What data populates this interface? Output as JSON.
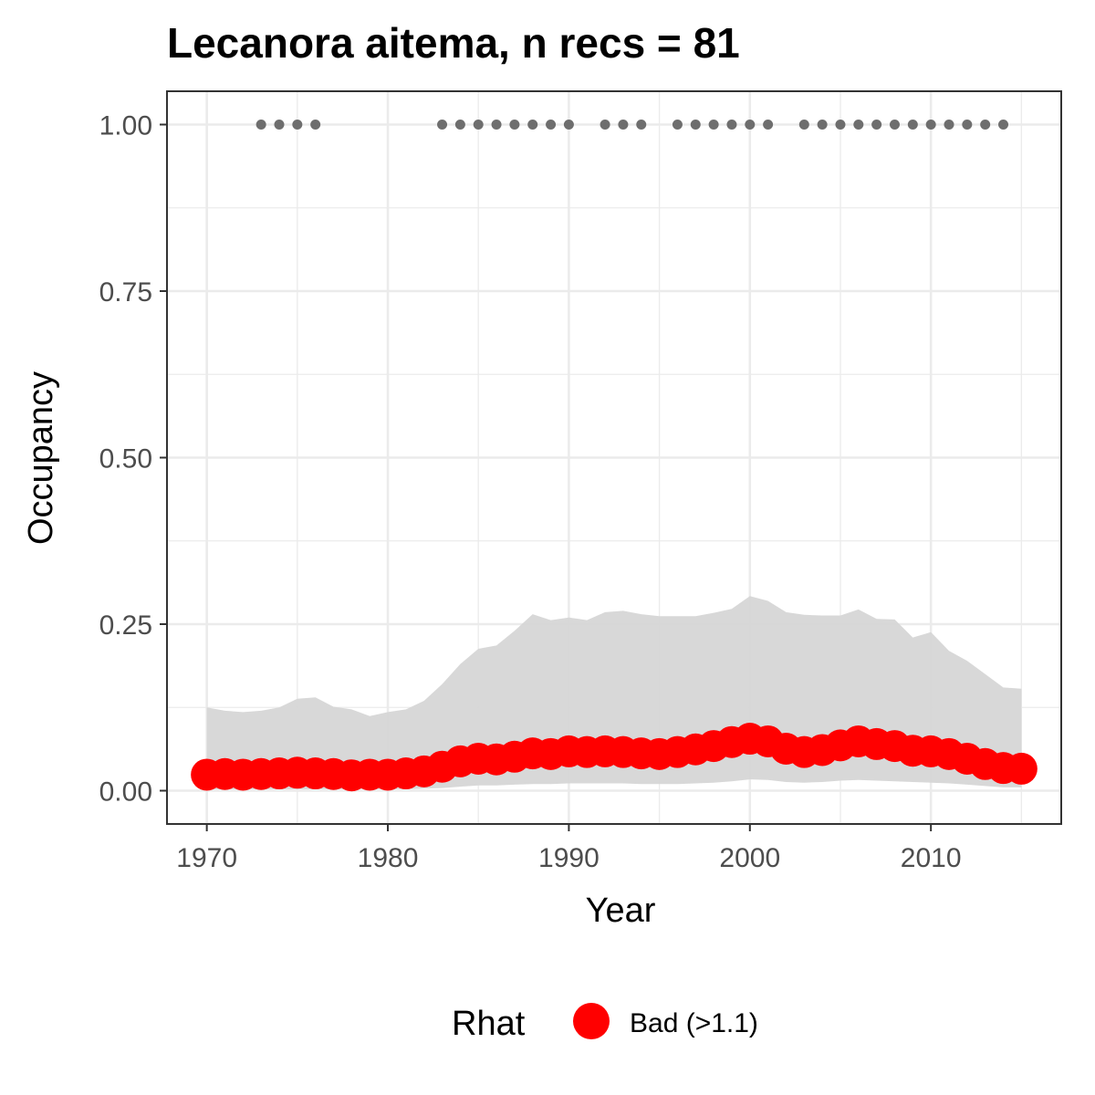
{
  "chart_data": {
    "type": "line",
    "title": "Lecanora aitema, n recs = 81",
    "xlabel": "Year",
    "ylabel": "Occupancy",
    "xlim": [
      1967.8,
      2017.2
    ],
    "ylim": [
      -0.05,
      1.05
    ],
    "x_ticks": [
      1970,
      1980,
      1990,
      2000,
      2010
    ],
    "x_tick_labels": [
      "1970",
      "1980",
      "1990",
      "2000",
      "2010"
    ],
    "y_ticks": [
      0,
      0.25,
      0.5,
      0.75,
      1.0
    ],
    "y_tick_labels": [
      "0.00",
      "0.25",
      "0.50",
      "0.75",
      "1.00"
    ],
    "grid": true,
    "legend_position": "bottom",
    "x": [
      1970,
      1971,
      1972,
      1973,
      1974,
      1975,
      1976,
      1977,
      1978,
      1979,
      1980,
      1981,
      1982,
      1983,
      1984,
      1985,
      1986,
      1987,
      1988,
      1989,
      1990,
      1991,
      1992,
      1993,
      1994,
      1995,
      1996,
      1997,
      1998,
      1999,
      2000,
      2001,
      2002,
      2003,
      2004,
      2005,
      2006,
      2007,
      2008,
      2009,
      2010,
      2011,
      2012,
      2013,
      2014,
      2015
    ],
    "mean": [
      0.024,
      0.025,
      0.024,
      0.025,
      0.026,
      0.027,
      0.026,
      0.025,
      0.023,
      0.024,
      0.024,
      0.026,
      0.029,
      0.036,
      0.044,
      0.048,
      0.047,
      0.051,
      0.056,
      0.055,
      0.059,
      0.058,
      0.059,
      0.058,
      0.056,
      0.055,
      0.058,
      0.062,
      0.067,
      0.073,
      0.078,
      0.074,
      0.063,
      0.058,
      0.061,
      0.068,
      0.074,
      0.07,
      0.067,
      0.06,
      0.059,
      0.055,
      0.048,
      0.04,
      0.034,
      0.033
    ],
    "lower": [
      0.002,
      0.002,
      0.002,
      0.002,
      0.002,
      0.002,
      0.002,
      0.002,
      0.002,
      0.002,
      0.002,
      0.002,
      0.003,
      0.004,
      0.006,
      0.008,
      0.008,
      0.009,
      0.01,
      0.01,
      0.011,
      0.011,
      0.011,
      0.011,
      0.01,
      0.01,
      0.01,
      0.011,
      0.012,
      0.014,
      0.017,
      0.016,
      0.013,
      0.012,
      0.013,
      0.015,
      0.016,
      0.015,
      0.014,
      0.013,
      0.012,
      0.011,
      0.009,
      0.007,
      0.005,
      0.005
    ],
    "upper": [
      0.125,
      0.12,
      0.118,
      0.12,
      0.125,
      0.138,
      0.14,
      0.126,
      0.122,
      0.112,
      0.118,
      0.122,
      0.135,
      0.16,
      0.19,
      0.213,
      0.218,
      0.24,
      0.265,
      0.256,
      0.26,
      0.256,
      0.268,
      0.27,
      0.265,
      0.262,
      0.262,
      0.262,
      0.267,
      0.273,
      0.292,
      0.285,
      0.268,
      0.264,
      0.263,
      0.263,
      0.272,
      0.258,
      0.257,
      0.23,
      0.238,
      0.21,
      0.195,
      0.175,
      0.155,
      0.153
    ],
    "detection_years": [
      1973,
      1974,
      1975,
      1976,
      1983,
      1984,
      1985,
      1986,
      1987,
      1988,
      1989,
      1990,
      1992,
      1993,
      1994,
      1996,
      1997,
      1998,
      1999,
      2000,
      2001,
      2003,
      2004,
      2005,
      2006,
      2007,
      2008,
      2009,
      2010,
      2011,
      2012,
      2013,
      2014
    ],
    "detection_value": 1.0,
    "legend": {
      "title": "Rhat",
      "entries": [
        {
          "label": "Bad (>1.1)",
          "color": "#ff0000"
        }
      ]
    },
    "colors": {
      "mean": "#ff0000",
      "ribbon": "#d6d6d6",
      "detections": "#6e6e6e",
      "grid": "#ebebeb",
      "panel_border": "#333333",
      "tick": "#333333"
    }
  }
}
